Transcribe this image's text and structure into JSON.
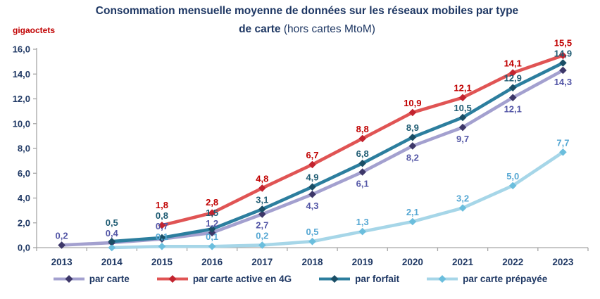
{
  "title": {
    "line1": "Consommation mensuelle moyenne de données sur les réseaux mobiles par type",
    "line2_bold": "de carte",
    "line2_regular": "(hors cartes MtoM)"
  },
  "colors": {
    "navy": "#1F3864",
    "unit_red": "#C00000",
    "axis": "#A6A6A6"
  },
  "chart_data": {
    "type": "line",
    "title": "Consommation mensuelle moyenne de données sur les réseaux mobiles par type de carte (hors cartes MtoM)",
    "unit": "gigaoctets",
    "x": [
      "2013",
      "2014",
      "2015",
      "2016",
      "2017",
      "2018",
      "2019",
      "2020",
      "2021",
      "2022",
      "2023"
    ],
    "ylim": [
      0,
      16
    ],
    "ytick_step": 2,
    "ytick_labels": [
      "0,0",
      "2,0",
      "4,0",
      "6,0",
      "8,0",
      "10,0",
      "12,0",
      "14,0",
      "16,0"
    ],
    "grid": false,
    "legend_position": "bottom-center",
    "draw_order": [
      0,
      3,
      2,
      1
    ],
    "series": [
      {
        "name": "par carte",
        "line_color": "#A3A0CF",
        "marker_color": "#3D3769",
        "label_color": "#5356A6",
        "values": [
          0.2,
          0.4,
          0.7,
          1.2,
          2.7,
          4.3,
          6.1,
          8.2,
          9.7,
          12.1,
          14.3
        ],
        "labels": [
          "0,2",
          "0,4",
          "0,7",
          "1,2",
          "2,7",
          "4,3",
          "6,1",
          "8,2",
          "9,7",
          "12,1",
          "14,3"
        ],
        "label_below": [
          false,
          false,
          false,
          false,
          true,
          true,
          true,
          true,
          true,
          true,
          true
        ]
      },
      {
        "name": "par carte active en 4G",
        "line_color": "#E05454",
        "marker_color": "#C2242F",
        "label_color": "#C00000",
        "values": [
          null,
          null,
          1.8,
          2.8,
          4.8,
          6.7,
          8.8,
          10.9,
          12.1,
          14.1,
          15.5
        ],
        "labels": [
          "",
          "",
          "1,8",
          "2,8",
          "4,8",
          "6,7",
          "8,8",
          "10,9",
          "12,1",
          "14,1",
          "15,5"
        ]
      },
      {
        "name": "par forfait",
        "line_color": "#2C7E9E",
        "marker_color": "#1A4E66",
        "label_color": "#1F5C73",
        "values": [
          null,
          0.5,
          0.8,
          1.5,
          3.1,
          4.9,
          6.8,
          8.9,
          10.5,
          12.9,
          14.9
        ],
        "labels": [
          "",
          "0,5",
          "0,8",
          "1,5",
          "3,1",
          "4,9",
          "6,8",
          "8,9",
          "10,5",
          "12,9",
          "14,9"
        ]
      },
      {
        "name": "par carte prépayée",
        "line_color": "#A6D6E8",
        "marker_color": "#6BBEDD",
        "label_color": "#55A7D3",
        "values": [
          null,
          0.0,
          0.1,
          0.1,
          0.2,
          0.5,
          1.3,
          2.1,
          3.2,
          5.0,
          7.7
        ],
        "labels": [
          "",
          "",
          "0,1",
          "0,1",
          "0,2",
          "0,5",
          "1,3",
          "2,1",
          "3,2",
          "5,0",
          "7,7"
        ]
      }
    ]
  }
}
